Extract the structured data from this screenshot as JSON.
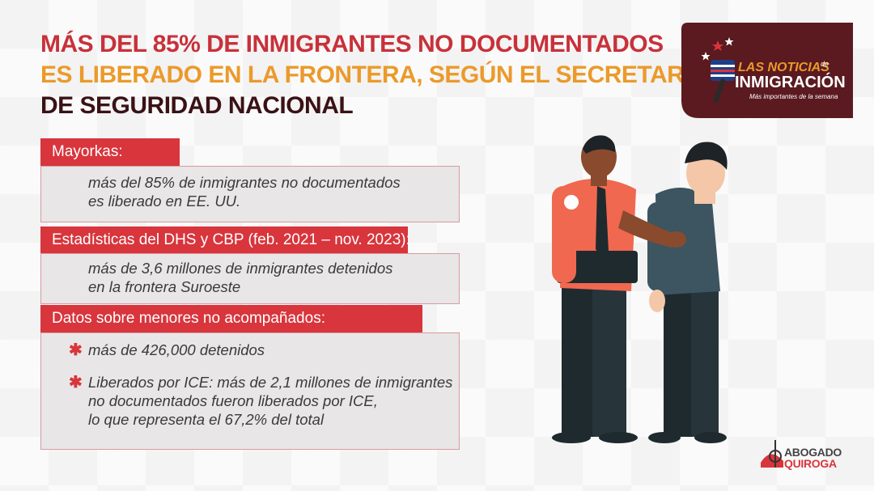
{
  "headline": {
    "line1": "MÁS DEL 85% DE INMIGRANTES NO DOCUMENTADOS",
    "line2": "ES LIBERADO EN LA FRONTERA, SEGÚN EL SECRETARIO",
    "line3": "DE SEGURIDAD NACIONAL"
  },
  "logo": {
    "line1": "LAS NOTICIAS",
    "connector": "de",
    "line2": "INMIGRACIÓN",
    "tagline": "Más importantes de la semana"
  },
  "sections": [
    {
      "label": "Mayorkas:",
      "lines": [
        "más del 85% de inmigrantes no documentados",
        "es liberado en EE. UU."
      ]
    },
    {
      "label": "Estadísticas del DHS y CBP (feb. 2021 – nov. 2023):",
      "lines": [
        "más de 3,6 millones de inmigrantes detenidos",
        "en la frontera Suroeste"
      ]
    },
    {
      "label": "Datos sobre menores no acompañados:",
      "bullets": [
        {
          "lines": [
            "más de 426,000 detenidos"
          ]
        },
        {
          "lines": [
            "Liberados por ICE: más de 2,1 millones de inmigrantes",
            "no documentados fueron liberados por ICE,",
            "lo que representa el 67,2% del total"
          ]
        }
      ]
    }
  ],
  "brand": {
    "line1": "ABOGADO",
    "line2": "QUIROGA"
  },
  "colors": {
    "red": "#d8353c",
    "orange": "#eb9a2a",
    "dark": "#3a1215",
    "logo_bg": "#5a1a20"
  },
  "icons": {
    "bullet": "asterisk-bullet-icon",
    "logo": "microphone-flag-icon",
    "illustration": "officer-escorting-man-illustration"
  }
}
